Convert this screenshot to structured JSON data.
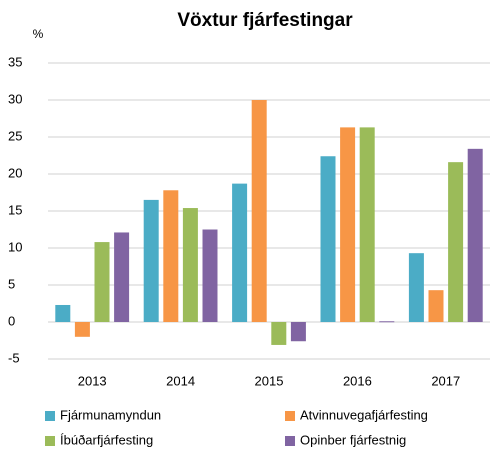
{
  "chart_data": {
    "type": "bar",
    "title": "Vöxtur fjárfestingar",
    "y_label": "%",
    "categories": [
      "2013",
      "2014",
      "2015",
      "2016",
      "2017"
    ],
    "series": [
      {
        "name": "Fjármunamyndun",
        "color": "#4bacc6",
        "values": [
          2.3,
          16.5,
          18.7,
          22.4,
          9.3
        ]
      },
      {
        "name": "Atvinnuvegafjárfesting",
        "color": "#f79646",
        "values": [
          -2.0,
          17.8,
          30.0,
          26.3,
          4.3
        ]
      },
      {
        "name": "Íbúðarfjárfesting",
        "color": "#9bbb59",
        "values": [
          10.8,
          15.4,
          -3.1,
          26.3,
          21.6
        ]
      },
      {
        "name": "Opinber fjárfestnig",
        "color": "#8064a2",
        "values": [
          12.1,
          12.5,
          -2.6,
          0.1,
          23.4
        ]
      }
    ],
    "ylim": [
      -5,
      35
    ],
    "yticks": [
      -5,
      0,
      5,
      10,
      15,
      20,
      25,
      30,
      35
    ],
    "grid": true,
    "legend": "bottom"
  }
}
